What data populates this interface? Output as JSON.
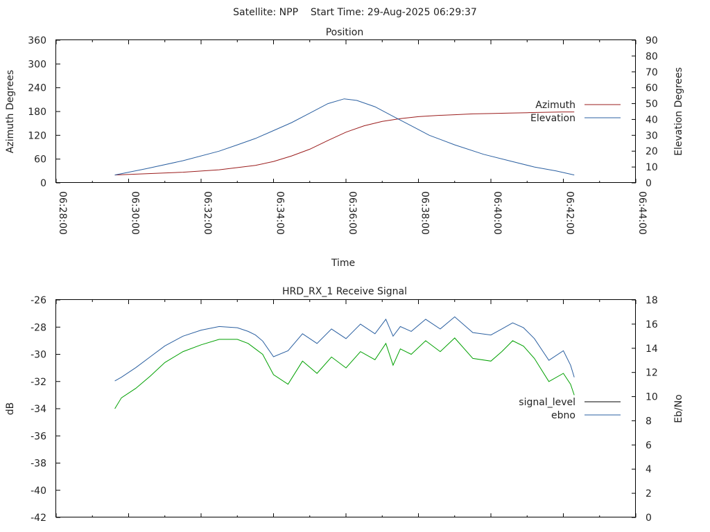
{
  "header": {
    "text": "Satellite: NPP    Start Time: 29-Aug-2025 06:29:37"
  },
  "chart_data": [
    {
      "id": "position",
      "type": "line",
      "title": "Position",
      "xlabel": "Time",
      "ylabel": "Azimuth Degrees",
      "y2label": "Elevation Degrees",
      "xlim": [
        0,
        16
      ],
      "ylim": [
        0,
        360
      ],
      "y2lim": [
        0,
        90
      ],
      "x_tick_values": [
        0,
        2,
        4,
        6,
        8,
        10,
        12,
        14,
        16
      ],
      "x_tick_labels": [
        "06:28:00",
        "06:30:00",
        "06:32:00",
        "06:34:00",
        "06:36:00",
        "06:38:00",
        "06:40:00",
        "06:42:00",
        "06:44:00"
      ],
      "y_ticks": [
        0,
        60,
        120,
        180,
        240,
        300,
        360
      ],
      "y2_ticks": [
        0,
        10,
        20,
        30,
        40,
        50,
        60,
        70,
        80,
        90
      ],
      "grid": false,
      "legend_position": "right",
      "series": [
        {
          "name": "Azimuth",
          "axis": "left",
          "color": "#9a1b1b",
          "x": [
            1.62,
            2.5,
            3.5,
            4.5,
            5.5,
            6.0,
            6.5,
            7.0,
            7.5,
            8.0,
            8.5,
            9.0,
            9.5,
            10.0,
            10.5,
            11.0,
            11.5,
            12.0,
            12.5,
            13.0,
            13.5,
            14.0,
            14.3
          ],
          "y": [
            20,
            23,
            27,
            33,
            44,
            54,
            68,
            85,
            107,
            128,
            144,
            155,
            162,
            167,
            170,
            172,
            174,
            175,
            176,
            177,
            178,
            179,
            179
          ]
        },
        {
          "name": "Elevation",
          "axis": "right",
          "color": "#2a5fa0",
          "x": [
            1.62,
            2.5,
            3.5,
            4.5,
            5.0,
            5.5,
            6.0,
            6.5,
            7.0,
            7.5,
            7.95,
            8.3,
            8.8,
            9.3,
            9.8,
            10.3,
            11.0,
            11.8,
            12.5,
            13.2,
            13.8,
            14.3
          ],
          "y": [
            5,
            9,
            14,
            20,
            24,
            28,
            33,
            38,
            44,
            50,
            53,
            52,
            48,
            42,
            36,
            30,
            24,
            18,
            14,
            10,
            7.5,
            5
          ]
        }
      ]
    },
    {
      "id": "signal",
      "type": "line",
      "title": "HRD_RX_1 Receive Signal",
      "xlabel": "",
      "ylabel": "dB",
      "y2label": "Eb/No",
      "xlim": [
        0,
        16
      ],
      "ylim": [
        -42,
        -26
      ],
      "y2lim": [
        0,
        18
      ],
      "x_tick_values": [
        0,
        2,
        4,
        6,
        8,
        10,
        12,
        14,
        16
      ],
      "y_ticks": [
        -42,
        -40,
        -38,
        -36,
        -34,
        -32,
        -30,
        -28,
        -26
      ],
      "y2_ticks": [
        0,
        2,
        4,
        6,
        8,
        10,
        12,
        14,
        16,
        18
      ],
      "grid": false,
      "legend_position": "right",
      "series": [
        {
          "name": "signal_level",
          "axis": "left",
          "color": "#000000",
          "legend_color": "#000000",
          "plot_color": "#00a000",
          "x": [
            1.62,
            1.8,
            2.2,
            2.6,
            3.0,
            3.5,
            4.0,
            4.5,
            5.0,
            5.3,
            5.5,
            5.7,
            6.0,
            6.4,
            6.8,
            7.2,
            7.6,
            8.0,
            8.4,
            8.8,
            9.1,
            9.3,
            9.5,
            9.8,
            10.2,
            10.6,
            11.0,
            11.5,
            12.0,
            12.3,
            12.6,
            12.9,
            13.2,
            13.6,
            14.0,
            14.2,
            14.3
          ],
          "y": [
            -34.0,
            -33.2,
            -32.5,
            -31.6,
            -30.6,
            -29.8,
            -29.3,
            -28.9,
            -28.9,
            -29.2,
            -29.6,
            -30.0,
            -31.5,
            -32.2,
            -30.5,
            -31.4,
            -30.2,
            -31.0,
            -29.8,
            -30.4,
            -29.2,
            -30.8,
            -29.6,
            -30.0,
            -29.0,
            -29.8,
            -28.8,
            -30.3,
            -30.5,
            -29.8,
            -29.0,
            -29.4,
            -30.3,
            -32.0,
            -31.4,
            -32.2,
            -33.0
          ]
        },
        {
          "name": "ebno",
          "axis": "right",
          "color": "#2a5fa0",
          "x": [
            1.62,
            1.8,
            2.2,
            2.6,
            3.0,
            3.5,
            4.0,
            4.5,
            5.0,
            5.3,
            5.5,
            5.7,
            6.0,
            6.4,
            6.8,
            7.2,
            7.6,
            8.0,
            8.4,
            8.8,
            9.1,
            9.3,
            9.5,
            9.8,
            10.2,
            10.6,
            11.0,
            11.5,
            12.0,
            12.3,
            12.6,
            12.9,
            13.2,
            13.6,
            14.0,
            14.2,
            14.3
          ],
          "y": [
            11.3,
            11.6,
            12.4,
            13.3,
            14.2,
            15.0,
            15.5,
            15.8,
            15.7,
            15.4,
            15.1,
            14.6,
            13.3,
            13.8,
            15.2,
            14.4,
            15.6,
            14.8,
            16.0,
            15.2,
            16.4,
            15.0,
            15.8,
            15.4,
            16.4,
            15.6,
            16.6,
            15.3,
            15.1,
            15.6,
            16.1,
            15.7,
            14.8,
            13.0,
            13.8,
            12.6,
            11.6
          ]
        }
      ]
    }
  ]
}
